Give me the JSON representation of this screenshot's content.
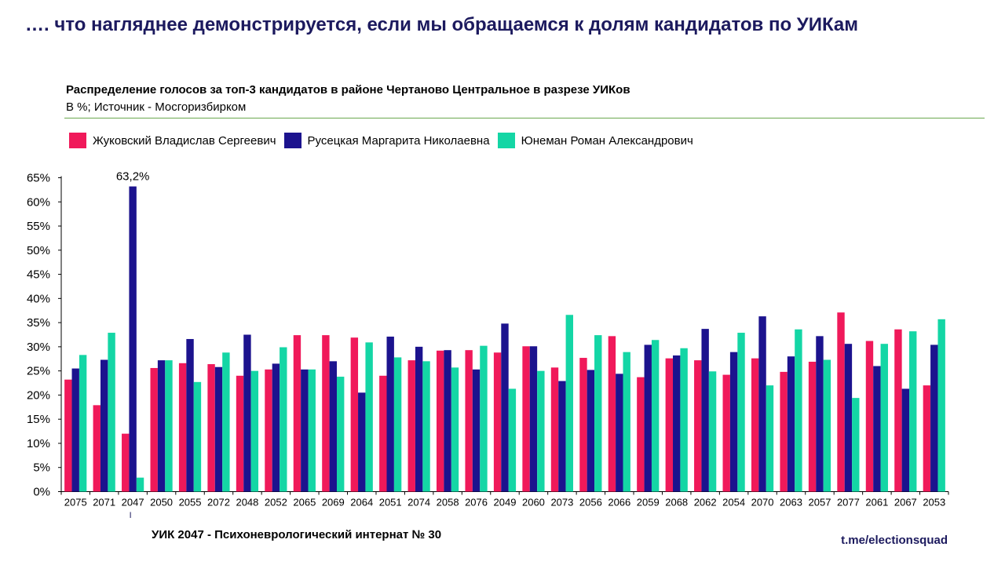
{
  "headline": "…. что нагляднее демонстрируется, если мы обращаемся к долям кандидатов по УИКам",
  "footnote": "УИК 2047 - Психоневрологический интернат № 30",
  "source_link": "t.me/electionsquad",
  "colors": {
    "zhukovsky": "#f0195a",
    "rusetskaya": "#1c138e",
    "yuneman": "#14d6a5",
    "headline": "#1c1a5e",
    "rule": "#6aa84f"
  },
  "chart_data": {
    "type": "bar",
    "title": "Распределение голосов за топ-3 кандидатов в районе Чертаново Центральное в разрезе УИКов",
    "subtitle": "В %; Источник - Мосгоризбирком",
    "xlabel": "",
    "ylabel": "",
    "ylim": [
      0,
      65
    ],
    "y_ticks": [
      "0%",
      "5%",
      "10%",
      "15%",
      "20%",
      "25%",
      "30%",
      "35%",
      "40%",
      "45%",
      "50%",
      "55%",
      "60%",
      "65%"
    ],
    "grid": false,
    "legend_position": "top-left",
    "categories": [
      "2075",
      "2071",
      "2047",
      "2050",
      "2055",
      "2072",
      "2048",
      "2052",
      "2065",
      "2069",
      "2064",
      "2051",
      "2074",
      "2058",
      "2076",
      "2049",
      "2060",
      "2073",
      "2056",
      "2066",
      "2059",
      "2068",
      "2062",
      "2054",
      "2070",
      "2063",
      "2057",
      "2077",
      "2061",
      "2067",
      "2053"
    ],
    "series": [
      {
        "name": "Жуковский Владислав Сергеевич",
        "values": [
          23.2,
          17.9,
          12.0,
          25.6,
          26.6,
          26.4,
          24.0,
          25.3,
          32.4,
          32.4,
          31.9,
          24.0,
          27.2,
          29.2,
          29.3,
          28.8,
          30.1,
          25.7,
          27.7,
          32.2,
          23.7,
          27.6,
          27.2,
          24.2,
          27.6,
          24.8,
          26.9,
          37.1,
          31.2,
          33.6,
          22.0
        ]
      },
      {
        "name": "Русецкая Маргарита Николаевна",
        "values": [
          25.5,
          27.3,
          63.2,
          27.2,
          31.6,
          25.8,
          32.5,
          26.5,
          25.3,
          27.0,
          20.5,
          32.1,
          30.0,
          29.3,
          25.3,
          34.8,
          30.1,
          22.9,
          25.2,
          24.4,
          30.4,
          28.2,
          33.7,
          28.9,
          36.3,
          28.0,
          32.2,
          30.6,
          26.0,
          21.3,
          30.4
        ]
      },
      {
        "name": "Юнеман Роман Александрович",
        "values": [
          28.3,
          32.9,
          2.9,
          27.2,
          22.7,
          28.8,
          25.0,
          29.9,
          25.3,
          23.8,
          30.9,
          27.8,
          27.0,
          25.7,
          30.2,
          21.3,
          25.0,
          36.6,
          32.4,
          28.9,
          31.4,
          29.7,
          24.9,
          32.9,
          22.0,
          33.6,
          27.3,
          19.4,
          30.6,
          33.2,
          35.7
        ]
      }
    ],
    "annotations": [
      {
        "category": "2047",
        "series": "Русецкая Маргарита Николаевна",
        "label": "63,2%"
      }
    ]
  }
}
